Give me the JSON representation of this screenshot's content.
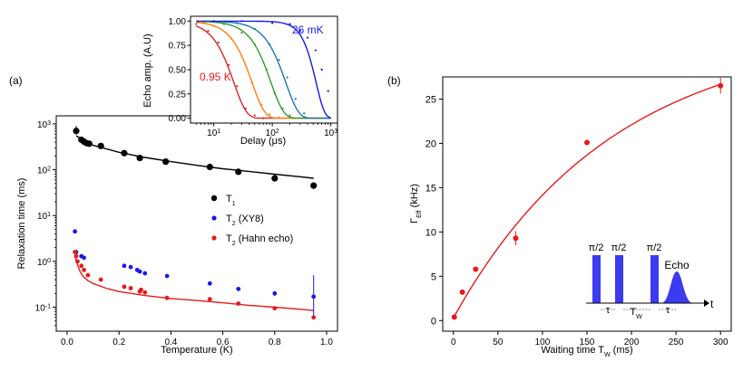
{
  "chart_data": [
    {
      "type": "scatter",
      "panel_label": "(a)",
      "xlabel": "Temperature (K)",
      "ylabel": "Relaxation time (ms)",
      "xlim": [
        0,
        1.0
      ],
      "yscale": "log",
      "ylim": [
        0.03,
        1500
      ],
      "x_ticks": [
        0.0,
        0.2,
        0.4,
        0.6,
        0.8,
        1.0
      ],
      "x_tick_labels": [
        "0.0",
        "0.2",
        "0.4",
        "0.6",
        "0.8",
        "1.0"
      ],
      "y_ticks": [
        0.1,
        1,
        10,
        100,
        1000
      ],
      "y_tick_labels": [
        [
          "10",
          "-1"
        ],
        [
          "10",
          "0"
        ],
        [
          "10",
          "1"
        ],
        [
          "10",
          "2"
        ],
        [
          "10",
          "3"
        ]
      ],
      "legend": [
        {
          "main": "T",
          "sub": "1",
          "rest": "",
          "color": "#000000"
        },
        {
          "main": "T",
          "sub": "2",
          "rest": " (XY8)",
          "color": "#1a1ae6"
        },
        {
          "main": "T",
          "sub": "2",
          "rest": " (Hahn echo)",
          "color": "#e61a1a"
        }
      ],
      "series": [
        {
          "name": "T1",
          "color": "#000000",
          "marker_size": 3.6,
          "x": [
            0.035,
            0.055,
            0.065,
            0.075,
            0.085,
            0.13,
            0.22,
            0.28,
            0.38,
            0.55,
            0.66,
            0.8,
            0.95
          ],
          "y": [
            700,
            450,
            410,
            380,
            370,
            330,
            230,
            180,
            150,
            115,
            90,
            65,
            45
          ],
          "yerr_low": [
            580,
            null,
            null,
            null,
            null,
            null,
            null,
            null,
            null,
            null,
            null,
            55,
            38
          ],
          "yerr_high": [
            900,
            null,
            null,
            null,
            null,
            null,
            null,
            null,
            null,
            null,
            null,
            78,
            53
          ]
        },
        {
          "name": "T2 (XY8)",
          "color": "#1a1ae6",
          "marker_size": 2.4,
          "x": [
            0.03,
            0.035,
            0.055,
            0.065,
            0.22,
            0.245,
            0.27,
            0.28,
            0.3,
            0.385,
            0.55,
            0.66,
            0.8,
            0.95
          ],
          "y": [
            4.5,
            1.6,
            1.3,
            1.2,
            0.8,
            0.75,
            0.65,
            0.6,
            0.55,
            0.48,
            0.33,
            0.25,
            0.2,
            0.17
          ],
          "yerr_low": [
            null,
            null,
            null,
            null,
            null,
            null,
            null,
            null,
            null,
            null,
            null,
            null,
            0.175,
            0.06
          ],
          "yerr_high": [
            null,
            null,
            null,
            null,
            null,
            null,
            null,
            null,
            null,
            null,
            null,
            null,
            0.225,
            0.5
          ]
        },
        {
          "name": "T2 (Hahn echo)",
          "color": "#e61a1a",
          "marker_size": 2.4,
          "x": [
            0.03,
            0.035,
            0.04,
            0.055,
            0.065,
            0.08,
            0.13,
            0.22,
            0.245,
            0.28,
            0.285,
            0.3,
            0.385,
            0.55,
            0.66,
            0.8,
            0.95
          ],
          "y": [
            1.6,
            1.3,
            1.0,
            0.8,
            0.65,
            0.5,
            0.4,
            0.28,
            0.26,
            0.22,
            0.24,
            0.21,
            0.16,
            0.15,
            0.12,
            0.095,
            0.06
          ],
          "yerr_low": [
            null,
            null,
            null,
            null,
            null,
            null,
            null,
            null,
            null,
            null,
            null,
            null,
            null,
            null,
            null,
            null,
            null
          ],
          "yerr_high": [
            null,
            null,
            null,
            null,
            null,
            null,
            null,
            null,
            null,
            null,
            null,
            null,
            null,
            null,
            null,
            null,
            null
          ]
        }
      ],
      "fits": [
        {
          "name": "T1 fit",
          "color": "#000000",
          "x": [
            0.035,
            0.1,
            0.2,
            0.3,
            0.4,
            0.5,
            0.6,
            0.7,
            0.8,
            0.9,
            0.95
          ],
          "y": [
            550,
            340,
            240,
            185,
            150,
            125,
            105,
            92,
            80,
            70,
            65
          ]
        },
        {
          "name": "T2 Hahn fit",
          "color": "#e61a1a",
          "x": [
            0.03,
            0.04,
            0.05,
            0.06,
            0.08,
            0.1,
            0.15,
            0.2,
            0.3,
            0.4,
            0.5,
            0.6,
            0.7,
            0.8,
            0.9,
            0.95
          ],
          "y": [
            1.3,
            0.85,
            0.6,
            0.48,
            0.38,
            0.33,
            0.26,
            0.22,
            0.18,
            0.155,
            0.14,
            0.125,
            0.11,
            0.1,
            0.09,
            0.085
          ]
        }
      ]
    },
    {
      "type": "line",
      "inset_of": "(a)",
      "xlabel": "Delay (μs)",
      "ylabel": "Echo  amp. (A.U)",
      "xscale": "log",
      "xlim": [
        4,
        1300
      ],
      "ylim": [
        -0.05,
        1.05
      ],
      "x_ticks": [
        10,
        100,
        1000
      ],
      "x_tick_labels": [
        [
          "10",
          "1"
        ],
        [
          "10",
          "2"
        ],
        [
          "10",
          "3"
        ]
      ],
      "y_ticks": [
        0.0,
        0.25,
        0.5,
        0.75,
        1.0
      ],
      "y_tick_labels": [
        "0.00",
        "0.25",
        "0.50",
        "0.75",
        "1.00"
      ],
      "annotations": [
        {
          "text": "26 mK",
          "color": "#1a1ae6"
        },
        {
          "text": "0.95 K",
          "color": "#e61a1a"
        }
      ],
      "curves": [
        {
          "label": "0.95 K",
          "color": "#d62728",
          "tau": 22,
          "n": 2
        },
        {
          "label": "",
          "color": "#ff7f0e",
          "tau": 45,
          "n": 2
        },
        {
          "label": "",
          "color": "#2ca02c",
          "tau": 95,
          "n": 2
        },
        {
          "label": "",
          "color": "#1f77b4",
          "tau": 170,
          "n": 2
        },
        {
          "label": "26 mK",
          "color": "#1a1ae6",
          "tau": 560,
          "n": 3
        }
      ],
      "points": [
        {
          "color": "#d62728",
          "x": [
            5,
            8,
            12,
            18,
            25,
            35,
            50,
            70
          ],
          "y": [
            0.97,
            0.9,
            0.78,
            0.55,
            0.33,
            0.1,
            0.03,
            0.0
          ]
        },
        {
          "color": "#ff7f0e",
          "x": [
            6,
            10,
            20,
            30,
            45,
            65,
            90,
            130
          ],
          "y": [
            0.99,
            0.95,
            0.82,
            0.64,
            0.37,
            0.14,
            0.04,
            0.01
          ]
        },
        {
          "color": "#2ca02c",
          "x": [
            8,
            15,
            30,
            50,
            80,
            110,
            150,
            200
          ],
          "y": [
            1.0,
            0.97,
            0.88,
            0.76,
            0.5,
            0.26,
            0.1,
            0.03
          ]
        },
        {
          "color": "#1f77b4",
          "x": [
            10,
            25,
            50,
            90,
            130,
            180,
            250,
            350
          ],
          "y": [
            1.0,
            0.98,
            0.92,
            0.76,
            0.6,
            0.42,
            0.2,
            0.05
          ]
        },
        {
          "color": "#1a1ae6",
          "x": [
            10,
            30,
            100,
            200,
            300,
            400,
            550,
            700,
            900
          ],
          "y": [
            1.0,
            1.0,
            0.98,
            0.97,
            0.9,
            0.83,
            0.7,
            0.5,
            0.28
          ]
        }
      ]
    },
    {
      "type": "scatter",
      "panel_label": "(b)",
      "xlabel": "Waiting time T",
      "xlabel_sub": "W",
      "xlabel_units": " (ms)",
      "ylabel": "Γ",
      "ylabel_sub": "Eff",
      "ylabel_units": " (kHz)",
      "xlim": [
        -12,
        312
      ],
      "ylim": [
        -1.2,
        27.5
      ],
      "x_ticks": [
        0,
        50,
        100,
        150,
        200,
        250,
        300
      ],
      "x_tick_labels": [
        "0",
        "50",
        "100",
        "150",
        "200",
        "250",
        "300"
      ],
      "y_ticks": [
        0,
        5,
        10,
        15,
        20,
        25
      ],
      "y_tick_labels": [
        "0",
        "5",
        "10",
        "15",
        "20",
        "25"
      ],
      "series": [
        {
          "name": "Γ_Eff",
          "color": "#e61a1a",
          "x": [
            1,
            10,
            25,
            70,
            150,
            300
          ],
          "y": [
            0.4,
            3.2,
            5.8,
            9.3,
            20.1,
            26.5
          ],
          "yerr": [
            0,
            0.2,
            0.2,
            0.8,
            0,
            0.9
          ]
        }
      ],
      "fit": {
        "color": "#e61a1a",
        "amplitude": 32.5,
        "tau": 180,
        "offset": 0.3
      },
      "pulse_diagram": {
        "pulse_labels": [
          "π/2",
          "π/2",
          "π/2"
        ],
        "echo_label": "Echo",
        "time_axis_label": "t",
        "interval_labels": [
          "τ",
          "T",
          "τ"
        ],
        "interval_subs": [
          "",
          "W",
          ""
        ],
        "color": "#3b3bf0"
      }
    }
  ]
}
